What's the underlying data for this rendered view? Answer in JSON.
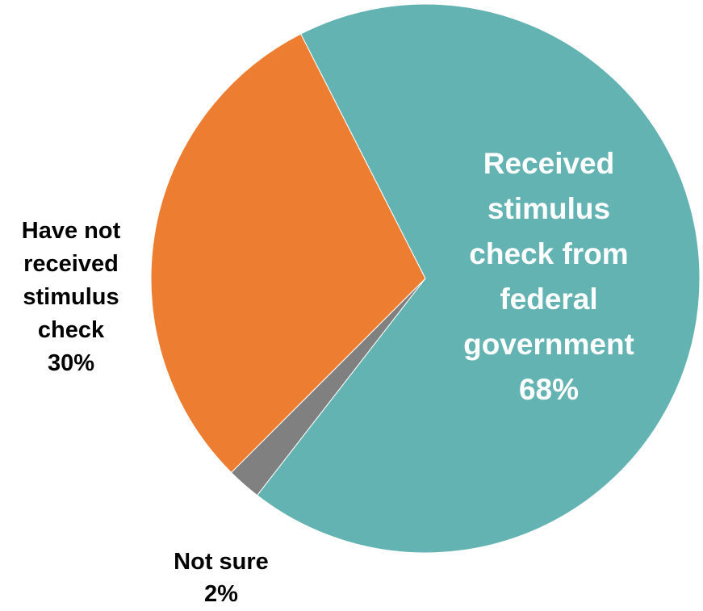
{
  "chart_data": {
    "type": "pie",
    "title": "",
    "slices": [
      {
        "name": "Received stimulus check from federal government",
        "label_lines": [
          "Received",
          "stimulus",
          "check from",
          "federal",
          "government",
          "68%"
        ],
        "value": 68,
        "color": "#62B3B1",
        "label_color": "#FFFFFF"
      },
      {
        "name": "Not sure",
        "label_lines": [
          "Not sure",
          "2%"
        ],
        "value": 2,
        "color": "#808080",
        "label_color": "#000000"
      },
      {
        "name": "Have not received stimulus check",
        "label_lines": [
          "Have not",
          "received",
          "stimulus",
          "check",
          "30%"
        ],
        "value": 30,
        "color": "#ED7D31",
        "label_color": "#000000"
      }
    ]
  }
}
